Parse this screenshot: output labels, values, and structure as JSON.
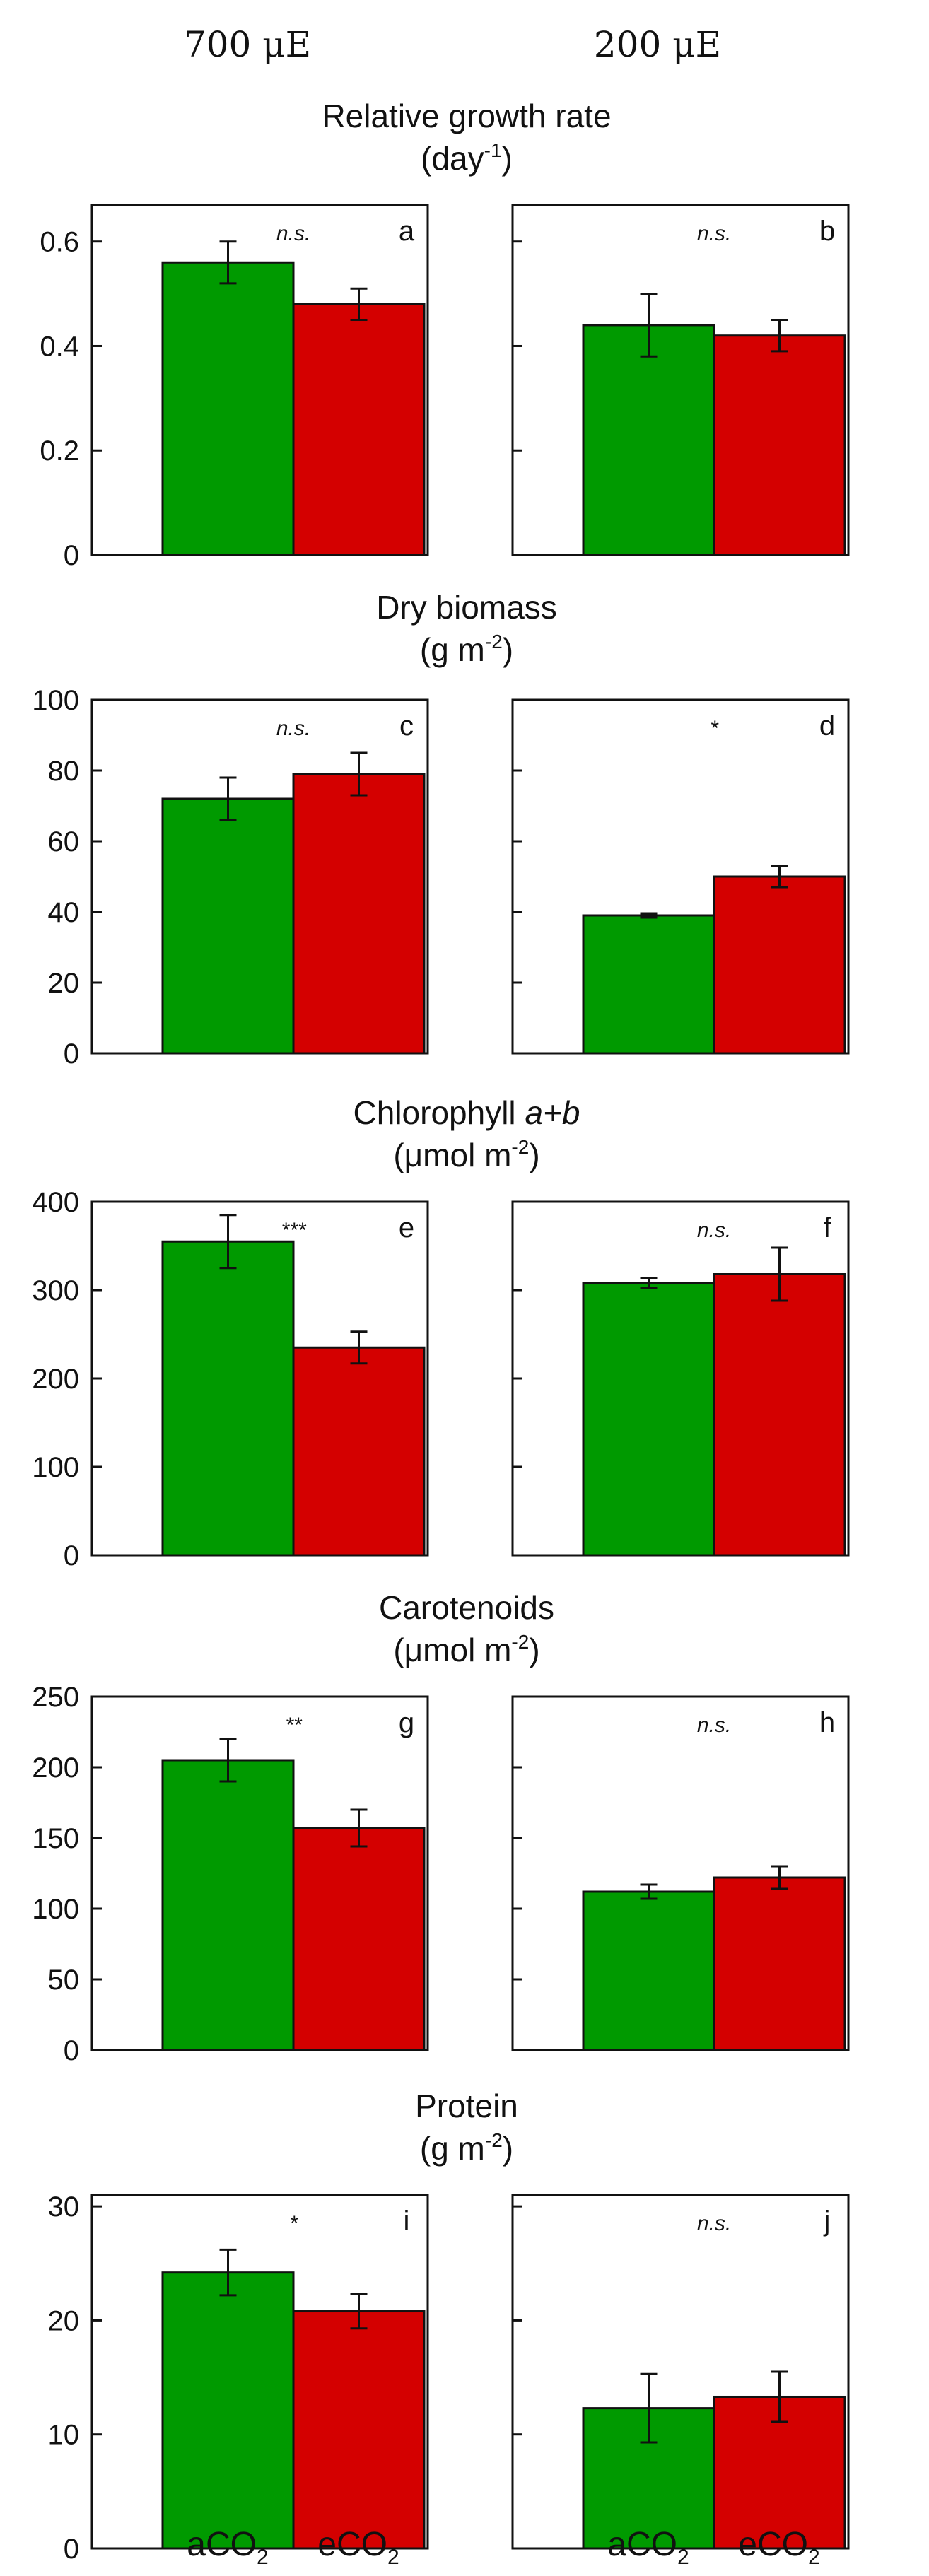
{
  "columns": [
    "700 μE",
    "200 μE"
  ],
  "colors": {
    "aCO2": "#009a00",
    "eCO2": "#d40000"
  },
  "chart_data": [
    {
      "type": "bar",
      "title": "Relative growth rate",
      "unit": {
        "base": "(day",
        "sup": "-1",
        "close": ")"
      },
      "categories": [
        "aCO2",
        "eCO2"
      ],
      "ylim": [
        0,
        0.67
      ],
      "yticks": [
        0,
        0.2,
        0.4,
        0.6
      ],
      "ytick_labels": [
        "0",
        "0.2",
        "0.4",
        "0.6"
      ],
      "panels": [
        {
          "letter": "a",
          "condition": "700 μE",
          "significance": "n.s.",
          "series": [
            {
              "name": "aCO2",
              "value": 0.56,
              "error": 0.04
            },
            {
              "name": "eCO2",
              "value": 0.48,
              "error": 0.03
            }
          ]
        },
        {
          "letter": "b",
          "condition": "200 μE",
          "significance": "n.s.",
          "series": [
            {
              "name": "aCO2",
              "value": 0.44,
              "error": 0.06
            },
            {
              "name": "eCO2",
              "value": 0.42,
              "error": 0.03
            }
          ]
        }
      ]
    },
    {
      "type": "bar",
      "title": "Dry biomass",
      "unit": {
        "base": "(g m",
        "sup": "-2",
        "close": ")"
      },
      "categories": [
        "aCO2",
        "eCO2"
      ],
      "ylim": [
        0,
        100
      ],
      "yticks": [
        0,
        20,
        40,
        60,
        80,
        100
      ],
      "ytick_labels": [
        "0",
        "20",
        "40",
        "60",
        "80",
        "100"
      ],
      "panels": [
        {
          "letter": "c",
          "condition": "700 μE",
          "significance": "n.s.",
          "series": [
            {
              "name": "aCO2",
              "value": 72,
              "error": 6
            },
            {
              "name": "eCO2",
              "value": 79,
              "error": 6
            }
          ]
        },
        {
          "letter": "d",
          "condition": "200 μE",
          "significance": "*",
          "series": [
            {
              "name": "aCO2",
              "value": 39,
              "error": 0.6
            },
            {
              "name": "eCO2",
              "value": 50,
              "error": 3
            }
          ]
        }
      ]
    },
    {
      "type": "bar",
      "title": "Chlorophyll a+b",
      "title_parts": {
        "prefix": "Chlorophyll ",
        "italic": "a+b"
      },
      "unit": {
        "base": "(μmol m",
        "sup": "-2",
        "close": ")"
      },
      "categories": [
        "aCO2",
        "eCO2"
      ],
      "ylim": [
        0,
        400
      ],
      "yticks": [
        0,
        100,
        200,
        300,
        400
      ],
      "ytick_labels": [
        "0",
        "100",
        "200",
        "300",
        "400"
      ],
      "panels": [
        {
          "letter": "e",
          "condition": "700 μE",
          "significance": "***",
          "series": [
            {
              "name": "aCO2",
              "value": 355,
              "error": 30
            },
            {
              "name": "eCO2",
              "value": 235,
              "error": 18
            }
          ]
        },
        {
          "letter": "f",
          "condition": "200 μE",
          "significance": "n.s.",
          "series": [
            {
              "name": "aCO2",
              "value": 308,
              "error": 6
            },
            {
              "name": "eCO2",
              "value": 318,
              "error": 30
            }
          ]
        }
      ]
    },
    {
      "type": "bar",
      "title": "Carotenoids",
      "unit": {
        "base": "(μmol m",
        "sup": "-2",
        "close": ")"
      },
      "categories": [
        "aCO2",
        "eCO2"
      ],
      "ylim": [
        0,
        250
      ],
      "yticks": [
        0,
        50,
        100,
        150,
        200,
        250
      ],
      "ytick_labels": [
        "0",
        "50",
        "100",
        "150",
        "200",
        "250"
      ],
      "panels": [
        {
          "letter": "g",
          "condition": "700 μE",
          "significance": "**",
          "series": [
            {
              "name": "aCO2",
              "value": 205,
              "error": 15
            },
            {
              "name": "eCO2",
              "value": 157,
              "error": 13
            }
          ]
        },
        {
          "letter": "h",
          "condition": "200 μE",
          "significance": "n.s.",
          "series": [
            {
              "name": "aCO2",
              "value": 112,
              "error": 5
            },
            {
              "name": "eCO2",
              "value": 122,
              "error": 8
            }
          ]
        }
      ]
    },
    {
      "type": "bar",
      "title": "Protein",
      "unit": {
        "base": "(g m",
        "sup": "-2",
        "close": ")"
      },
      "categories": [
        "aCO2",
        "eCO2"
      ],
      "ylim": [
        0,
        31
      ],
      "yticks": [
        0,
        10,
        20,
        30
      ],
      "ytick_labels": [
        "0",
        "10",
        "20",
        "30"
      ],
      "panels": [
        {
          "letter": "i",
          "condition": "700 μE",
          "significance": "*",
          "series": [
            {
              "name": "aCO2",
              "value": 24.2,
              "error": 2
            },
            {
              "name": "eCO2",
              "value": 20.8,
              "error": 1.5
            }
          ]
        },
        {
          "letter": "j",
          "condition": "200 μE",
          "significance": "n.s.",
          "series": [
            {
              "name": "aCO2",
              "value": 12.3,
              "error": 3
            },
            {
              "name": "eCO2",
              "value": 13.3,
              "error": 2.2
            }
          ]
        }
      ]
    }
  ],
  "x_labels": [
    {
      "main": "aCO",
      "sub": "2"
    },
    {
      "main": "eCO",
      "sub": "2"
    }
  ]
}
